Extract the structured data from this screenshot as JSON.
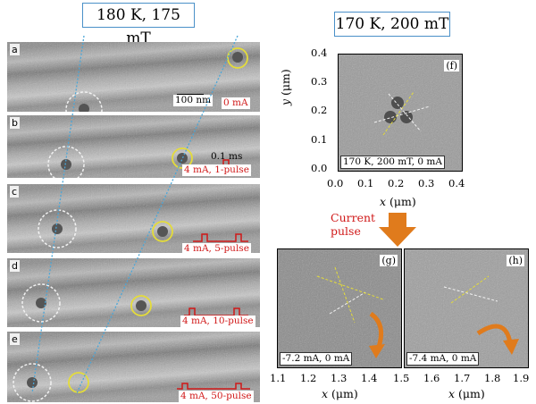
{
  "left_title": "180 K, 175 mT",
  "right_title": "170 K, 200 mT",
  "panels": [
    {
      "letter": "a",
      "label": "0 mA"
    },
    {
      "letter": "b",
      "label": "4 mA, 1-pulse"
    },
    {
      "letter": "c",
      "label": "4 mA, 5-pulse"
    },
    {
      "letter": "d",
      "label": "4 mA, 10-pulse"
    },
    {
      "letter": "e",
      "label": "4 mA, 50-pulse"
    }
  ],
  "scale_bar": "100 nm",
  "pulse_duration": "0.1 ms",
  "panel_f": {
    "letter": "(f)",
    "caption": "170 K, 200 mT,  0 mA",
    "xlabel_var": "x",
    "xlabel_unit": " (μm)",
    "ylabel_var": "y",
    "ylabel_unit": " (μm)",
    "xticks": [
      "0.0",
      "0.1",
      "0.2",
      "0.3",
      "0.4"
    ],
    "yticks": [
      "0.4",
      "0.3",
      "0.2",
      "0.1",
      "0.0"
    ]
  },
  "current_pulse_label": [
    "Current",
    "pulse"
  ],
  "panel_g": {
    "letter": "(g)",
    "caption": "-7.2 mA,  0 mA",
    "xticks": [
      "1.1",
      "1.2",
      "1.3",
      "1.4"
    ]
  },
  "panel_h": {
    "letter": "(h)",
    "caption": "-7.4 mA,  0 mA",
    "xticks": [
      "1.5",
      "1.6",
      "1.7",
      "1.8",
      "1.9"
    ]
  },
  "bottom_xlabel_var": "x",
  "bottom_xlabel_unit": " (μm)",
  "colors": {
    "accent_blue": "#4a90c8",
    "red": "#d01818",
    "orange": "#e07b1c",
    "yellow_circle": "#e4dc3a"
  }
}
